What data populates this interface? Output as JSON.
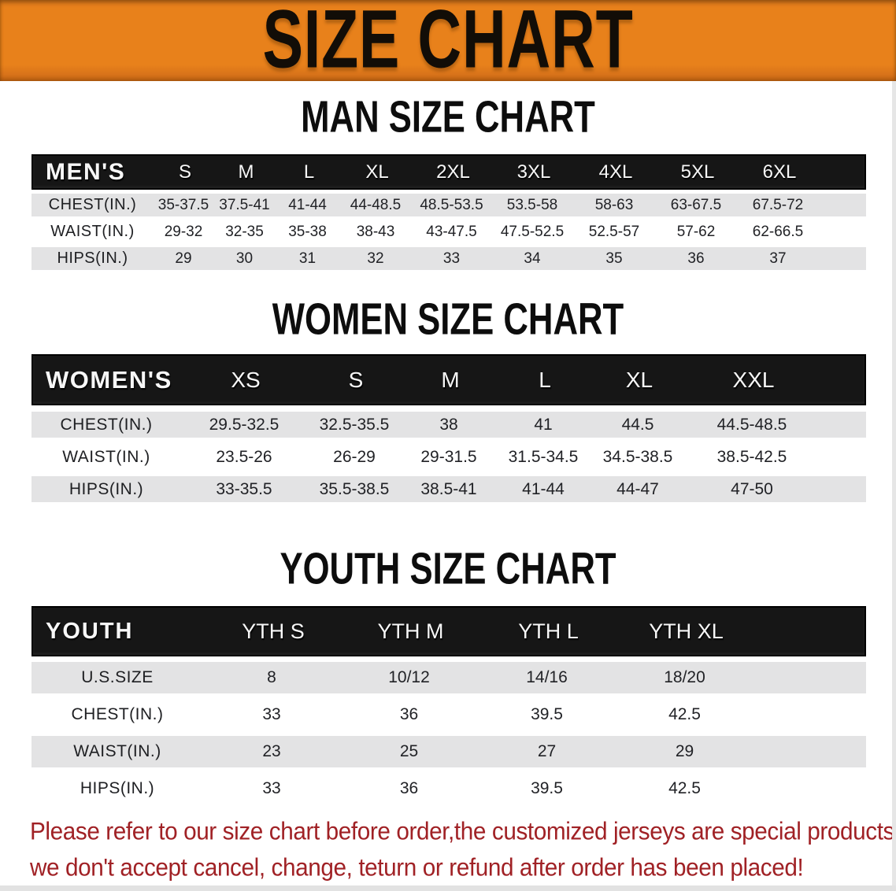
{
  "banner": {
    "title": "SIZE CHART",
    "bg_color": "#E8811B",
    "text_color": "#120D07"
  },
  "sections": [
    {
      "title": "MAN SIZE CHART",
      "label": "MEN'S",
      "columns": [
        "S",
        "M",
        "L",
        "XL",
        "2XL",
        "3XL",
        "4XL",
        "5XL",
        "6XL"
      ],
      "rows": [
        {
          "label": "CHEST(IN.)",
          "values": [
            "35-37.5",
            "37.5-41",
            "41-44",
            "44-48.5",
            "48.5-53.5",
            "53.5-58",
            "58-63",
            "63-67.5",
            "67.5-72"
          ]
        },
        {
          "label": "WAIST(IN.)",
          "values": [
            "29-32",
            "32-35",
            "35-38",
            "38-43",
            "43-47.5",
            "47.5-52.5",
            "52.5-57",
            "57-62",
            "62-66.5"
          ]
        },
        {
          "label": "HIPS(IN.)",
          "values": [
            "29",
            "30",
            "31",
            "32",
            "33",
            "34",
            "35",
            "36",
            "37"
          ]
        }
      ]
    },
    {
      "title": "WOMEN SIZE CHART",
      "label": "WOMEN'S",
      "columns": [
        "XS",
        "S",
        "M",
        "L",
        "XL",
        "XXL"
      ],
      "rows": [
        {
          "label": "CHEST(IN.)",
          "values": [
            "29.5-32.5",
            "32.5-35.5",
            "38",
            "41",
            "44.5",
            "44.5-48.5"
          ]
        },
        {
          "label": "WAIST(IN.)",
          "values": [
            "23.5-26",
            "26-29",
            "29-31.5",
            "31.5-34.5",
            "34.5-38.5",
            "38.5-42.5"
          ]
        },
        {
          "label": "HIPS(IN.)",
          "values": [
            "33-35.5",
            "35.5-38.5",
            "38.5-41",
            "41-44",
            "44-47",
            "47-50"
          ]
        }
      ]
    },
    {
      "title": "YOUTH SIZE CHART",
      "label": "YOUTH",
      "columns": [
        "YTH S",
        "YTH M",
        "YTH L",
        "YTH XL"
      ],
      "rows": [
        {
          "label": "U.S.SIZE",
          "values": [
            "8",
            "10/12",
            "14/16",
            "18/20"
          ]
        },
        {
          "label": "CHEST(IN.)",
          "values": [
            "33",
            "36",
            "39.5",
            "42.5"
          ]
        },
        {
          "label": "WAIST(IN.)",
          "values": [
            "23",
            "25",
            "27",
            "29"
          ]
        },
        {
          "label": "HIPS(IN.)",
          "values": [
            "33",
            "36",
            "39.5",
            "42.5"
          ]
        }
      ]
    }
  ],
  "footer": {
    "line1": "Please refer to our size chart before order,the customized jerseys are special products,",
    "line2": "we don't accept cancel, change, teturn or refund after order has been placed!",
    "text_color": "#A02125"
  },
  "colors": {
    "banner_orange": "#E8811B",
    "table_header_black": "#161616",
    "stripe_gray": "#E3E3E4",
    "note_red": "#A02125"
  }
}
